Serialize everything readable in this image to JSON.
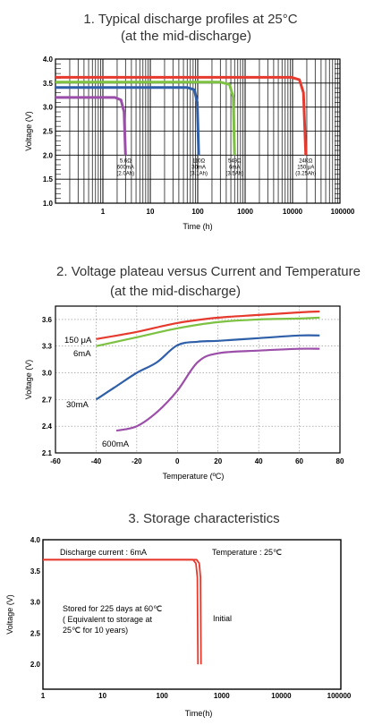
{
  "chart_data": [
    {
      "type": "line",
      "title": "1. Typical discharge profiles at 25°C",
      "subtitle": "(at  the mid-discharge)",
      "xlabel": "Time (h)",
      "ylabel": "Voltage (V)",
      "xscale": "log",
      "xlim": [
        0.1,
        100000
      ],
      "ylim": [
        1.0,
        4.0
      ],
      "x_tick_labels": [
        "1",
        "10",
        "100",
        "1000",
        "10000",
        "100000"
      ],
      "y_tick_labels": [
        "1.0",
        "1.5",
        "2.0",
        "2.5",
        "3.0",
        "3.5",
        "4.0"
      ],
      "grid": true,
      "series": [
        {
          "color": "#9b4fa8",
          "x": [
            0.1,
            1.8,
            2.4,
            2.8,
            3.0
          ],
          "y": [
            3.2,
            3.2,
            3.15,
            2.9,
            2.0
          ],
          "label": [
            "5.6Ω",
            "600mA",
            "(2.0Ah)"
          ]
        },
        {
          "color": "#2f5fa8",
          "x": [
            0.1,
            60,
            85,
            98,
            105
          ],
          "y": [
            3.41,
            3.41,
            3.36,
            3.1,
            2.0
          ],
          "label": [
            "110Ω",
            "30mA",
            "(3.1Ah)"
          ]
        },
        {
          "color": "#7cc142",
          "x": [
            0.1,
            300,
            470,
            560,
            600
          ],
          "y": [
            3.52,
            3.52,
            3.47,
            3.2,
            2.0
          ],
          "label": [
            "549Ω",
            "6mA",
            "(3.5Ah)"
          ]
        },
        {
          "color": "#e63a2e",
          "x": [
            0.1,
            9500,
            14000,
            17000,
            19000
          ],
          "y": [
            3.62,
            3.62,
            3.57,
            3.3,
            2.0
          ],
          "label": [
            "24KΩ",
            "150 μA",
            "(3.25Ah)"
          ]
        }
      ]
    },
    {
      "type": "line",
      "title": "2. Voltage plateau versus Current and Temperature",
      "subtitle": "(at the mid-discharge)",
      "xlabel": "Temperature (ºC)",
      "ylabel": "Voltage (V)",
      "xlim": [
        -60,
        80
      ],
      "ylim": [
        2.1,
        3.75
      ],
      "x_tick_labels": [
        "-60",
        "-40",
        "-20",
        "0",
        "20",
        "40",
        "60",
        "80"
      ],
      "y_tick_labels": [
        "2.1",
        "2.4",
        "2.7",
        "3.0",
        "3.3",
        "3.6"
      ],
      "grid": true,
      "series": [
        {
          "name": "150 μA",
          "color": "#e63a2e",
          "x": [
            -40,
            -20,
            0,
            20,
            40,
            60,
            70
          ],
          "y": [
            3.38,
            3.46,
            3.56,
            3.62,
            3.65,
            3.68,
            3.69
          ]
        },
        {
          "name": "6mA",
          "color": "#7cc142",
          "x": [
            -40,
            -20,
            0,
            20,
            40,
            60,
            70
          ],
          "y": [
            3.3,
            3.4,
            3.5,
            3.57,
            3.6,
            3.61,
            3.62
          ]
        },
        {
          "name": "30mA",
          "color": "#2f5fa8",
          "x": [
            -40,
            -30,
            -20,
            -10,
            0,
            10,
            20,
            40,
            60,
            70
          ],
          "y": [
            2.7,
            2.85,
            3.0,
            3.12,
            3.31,
            3.35,
            3.36,
            3.39,
            3.42,
            3.42
          ]
        },
        {
          "name": "600mA",
          "color": "#9b4fa8",
          "x": [
            -30,
            -20,
            -10,
            0,
            10,
            20,
            40,
            60,
            70
          ],
          "y": [
            2.35,
            2.4,
            2.56,
            2.8,
            3.12,
            3.22,
            3.25,
            3.27,
            3.27
          ]
        }
      ]
    },
    {
      "type": "line",
      "title": "3. Storage characteristics",
      "xlabel": "Time(h)",
      "ylabel": "Voltage (V)",
      "xscale": "log",
      "xlim": [
        1,
        100000
      ],
      "ylim": [
        1.6,
        4.0
      ],
      "x_tick_labels": [
        "1",
        "10",
        "100",
        "1000",
        "10000",
        "100000"
      ],
      "y_tick_labels": [
        "2.0",
        "2.5",
        "3.0",
        "3.5",
        "4.0"
      ],
      "grid": false,
      "annotations": [
        "Discharge current : 6mA",
        "Temperature : 25℃"
      ],
      "series": [
        {
          "color": "#e63a2e",
          "x": [
            1,
            330,
            370,
            390,
            400
          ],
          "y": [
            3.68,
            3.68,
            3.62,
            3.4,
            2.0
          ],
          "label": [
            "Stored for 225 days at 60℃",
            "( Equivalent to storage at",
            "25℃ for 10 years)"
          ]
        },
        {
          "color": "#e63a2e",
          "x": [
            1,
            380,
            420,
            440,
            450
          ],
          "y": [
            3.68,
            3.68,
            3.62,
            3.4,
            2.0
          ],
          "label": [
            "Initial"
          ]
        }
      ]
    }
  ]
}
